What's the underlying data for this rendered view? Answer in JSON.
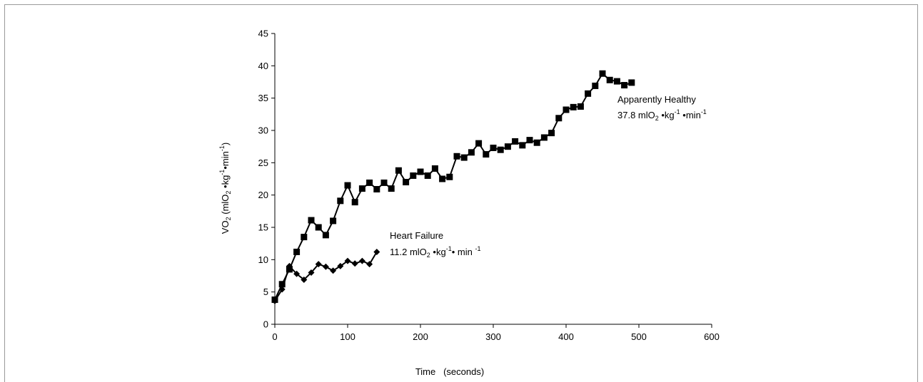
{
  "chart_data": {
    "type": "line",
    "xlabel": "Time   (seconds)",
    "ylabel_parts": {
      "a": "VO",
      "a_sub": "2",
      "b": " (mlO",
      "b_sub": "2",
      "c": " •kg",
      "c_sup": "-1",
      "d": "•min",
      "d_sup": "-1",
      "e": ")"
    },
    "xlim": [
      0,
      600
    ],
    "ylim": [
      0,
      45
    ],
    "x_ticks": [
      "0",
      "100",
      "200",
      "300",
      "400",
      "500",
      "600"
    ],
    "y_ticks": [
      "0",
      "5",
      "10",
      "15",
      "20",
      "25",
      "30",
      "35",
      "40",
      "45"
    ],
    "grid": false,
    "series": [
      {
        "name": "Apparently Healthy",
        "marker": "square",
        "x": [
          0,
          10,
          20,
          30,
          40,
          50,
          60,
          70,
          80,
          90,
          100,
          110,
          120,
          130,
          140,
          150,
          160,
          170,
          180,
          190,
          200,
          210,
          220,
          230,
          240,
          250,
          260,
          270,
          280,
          290,
          300,
          310,
          320,
          330,
          340,
          350,
          360,
          370,
          380,
          390,
          400,
          410,
          420,
          430,
          440,
          450,
          460,
          470,
          480,
          490
        ],
        "y": [
          3.8,
          6.2,
          8.5,
          11.2,
          13.5,
          16.1,
          15.0,
          13.8,
          16.0,
          19.1,
          21.5,
          18.9,
          21.0,
          21.9,
          20.9,
          21.9,
          21.0,
          23.8,
          22.0,
          23.0,
          23.6,
          23.0,
          24.1,
          22.5,
          22.8,
          26.0,
          25.8,
          26.6,
          28.0,
          26.3,
          27.3,
          27.0,
          27.5,
          28.3,
          27.7,
          28.5,
          28.1,
          28.9,
          29.6,
          31.9,
          33.2,
          33.6,
          33.7,
          35.7,
          36.9,
          38.8,
          37.8,
          37.6,
          37.0,
          37.4
        ]
      },
      {
        "name": "Heart Failure",
        "marker": "diamond",
        "x": [
          0,
          10,
          20,
          30,
          40,
          50,
          60,
          70,
          80,
          90,
          100,
          110,
          120,
          130,
          140
        ],
        "y": [
          3.6,
          5.4,
          9.0,
          7.8,
          6.9,
          8.0,
          9.3,
          8.9,
          8.3,
          9.0,
          9.8,
          9.4,
          9.8,
          9.3,
          11.2
        ]
      }
    ],
    "annotations": [
      {
        "id": "healthy",
        "line1": "Apparently Healthy",
        "line2": {
          "a": "37.8 mlO",
          "a_sub": "2",
          "b": " •kg",
          "b_sup": "-1",
          "c": " •min",
          "c_sup": "-1"
        }
      },
      {
        "id": "hf",
        "line1": "Heart Failure",
        "line2": {
          "a": "11.2 mlO",
          "a_sub": "2",
          "b": " •kg",
          "b_sup": "-1",
          "c": "• min ",
          "c_sup": "-1"
        }
      }
    ]
  }
}
